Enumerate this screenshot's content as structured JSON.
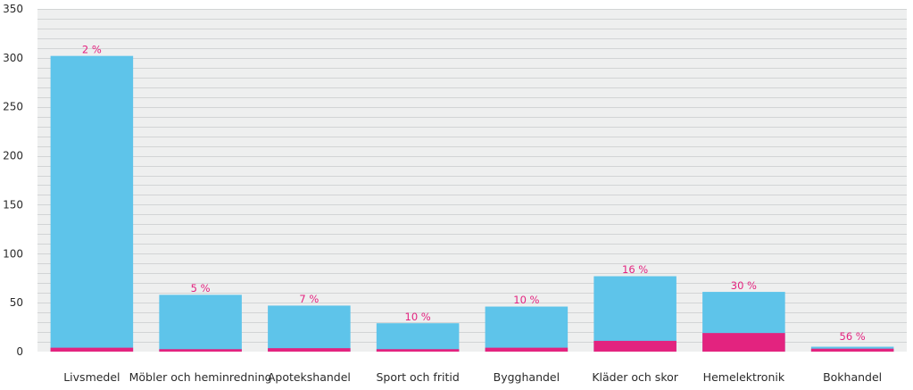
{
  "colors": {
    "background": "#eeefef",
    "grid": "#c9cbcc",
    "total": "#5ec4ea",
    "share": "#e3237f",
    "text": "#2b2b2b"
  },
  "chart_data": {
    "type": "bar",
    "categories": [
      "Livsmedel",
      "Möbler och heminredning",
      "Apotekshandel",
      "Sport och fritid",
      "Bygghandel",
      "Kläder och skor",
      "Hemelektronik",
      "Bokhandel"
    ],
    "series": [
      {
        "values": [
          302,
          58,
          47,
          29,
          46,
          77,
          61,
          5
        ]
      },
      {
        "values": [
          4,
          2.5,
          3.5,
          2.5,
          4,
          11,
          19,
          3
        ]
      }
    ],
    "share_labels": [
      "2 %",
      "5 %",
      "7 %",
      "10 %",
      "10 %",
      "16 %",
      "30 %",
      "56 %"
    ],
    "ylim": [
      0,
      350
    ],
    "yticks": [
      0,
      50,
      100,
      150,
      200,
      250,
      300,
      350
    ],
    "minor_grid_step": 10,
    "grid": true,
    "stacking": "overlay"
  }
}
